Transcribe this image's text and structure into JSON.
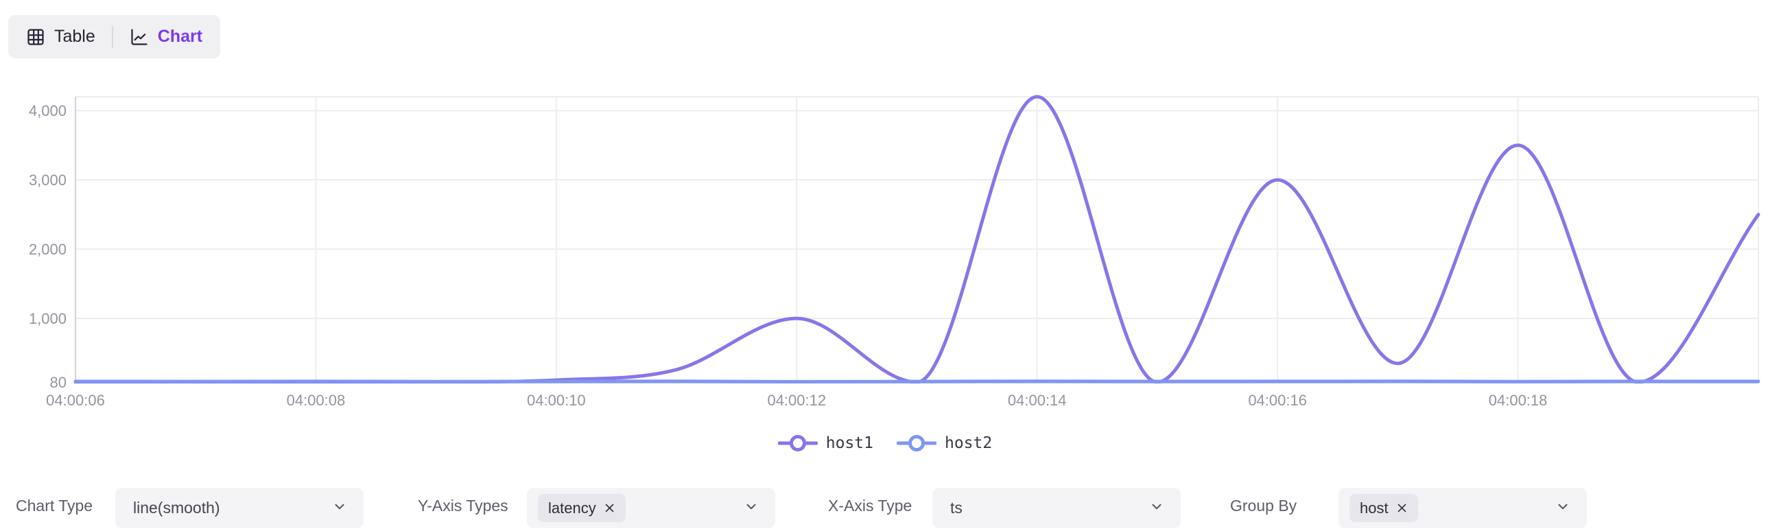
{
  "view_toggle": {
    "table_label": "Table",
    "chart_label": "Chart",
    "active": "chart"
  },
  "chart_data": {
    "type": "line",
    "smooth": true,
    "x": [
      "04:00:06",
      "04:00:07",
      "04:00:08",
      "04:00:09",
      "04:00:10",
      "04:00:11",
      "04:00:12",
      "04:00:13",
      "04:00:14",
      "04:00:15",
      "04:00:16",
      "04:00:17",
      "04:00:18",
      "04:00:19",
      "04:00:20"
    ],
    "x_tick_labels": [
      "04:00:06",
      "04:00:08",
      "04:00:10",
      "04:00:12",
      "04:00:14",
      "04:00:16",
      "04:00:18"
    ],
    "y_ticks": [
      {
        "value": 80,
        "label": "80"
      },
      {
        "value": 1000,
        "label": "1,000"
      },
      {
        "value": 2000,
        "label": "2,000"
      },
      {
        "value": 3000,
        "label": "3,000"
      },
      {
        "value": 4000,
        "label": "4,000"
      }
    ],
    "ylim": [
      80,
      4200
    ],
    "grid": true,
    "legend_position": "bottom-center",
    "series": [
      {
        "name": "host1",
        "color": "#8b74e9",
        "values": [
          80,
          80,
          80,
          82,
          110,
          260,
          1000,
          80,
          4200,
          80,
          3000,
          350,
          3500,
          80,
          2500
        ]
      },
      {
        "name": "host2",
        "color": "#7e97f1",
        "values": [
          90,
          89,
          91,
          88,
          90,
          92,
          86,
          89,
          93,
          90,
          91,
          92,
          88,
          91,
          90
        ]
      }
    ]
  },
  "controls": {
    "chart_type": {
      "label": "Chart Type",
      "value": "line(smooth)"
    },
    "y_axis_types": {
      "label": "Y-Axis Types",
      "tags": [
        "latency"
      ]
    },
    "x_axis_type": {
      "label": "X-Axis Type",
      "value": "ts"
    },
    "group_by": {
      "label": "Group By",
      "tags": [
        "host"
      ]
    }
  },
  "colors": {
    "accent": "#7c3aed",
    "axis_label": "#9494a0",
    "grid_line": "#ededf1",
    "axis_line": "#d2d2dc",
    "series_host1": "#8b74e9",
    "series_host2": "#7e97f1"
  },
  "icons": {
    "table": "table-grid",
    "chart": "line-chart",
    "clear": "x",
    "dropdown": "chevron-down"
  }
}
